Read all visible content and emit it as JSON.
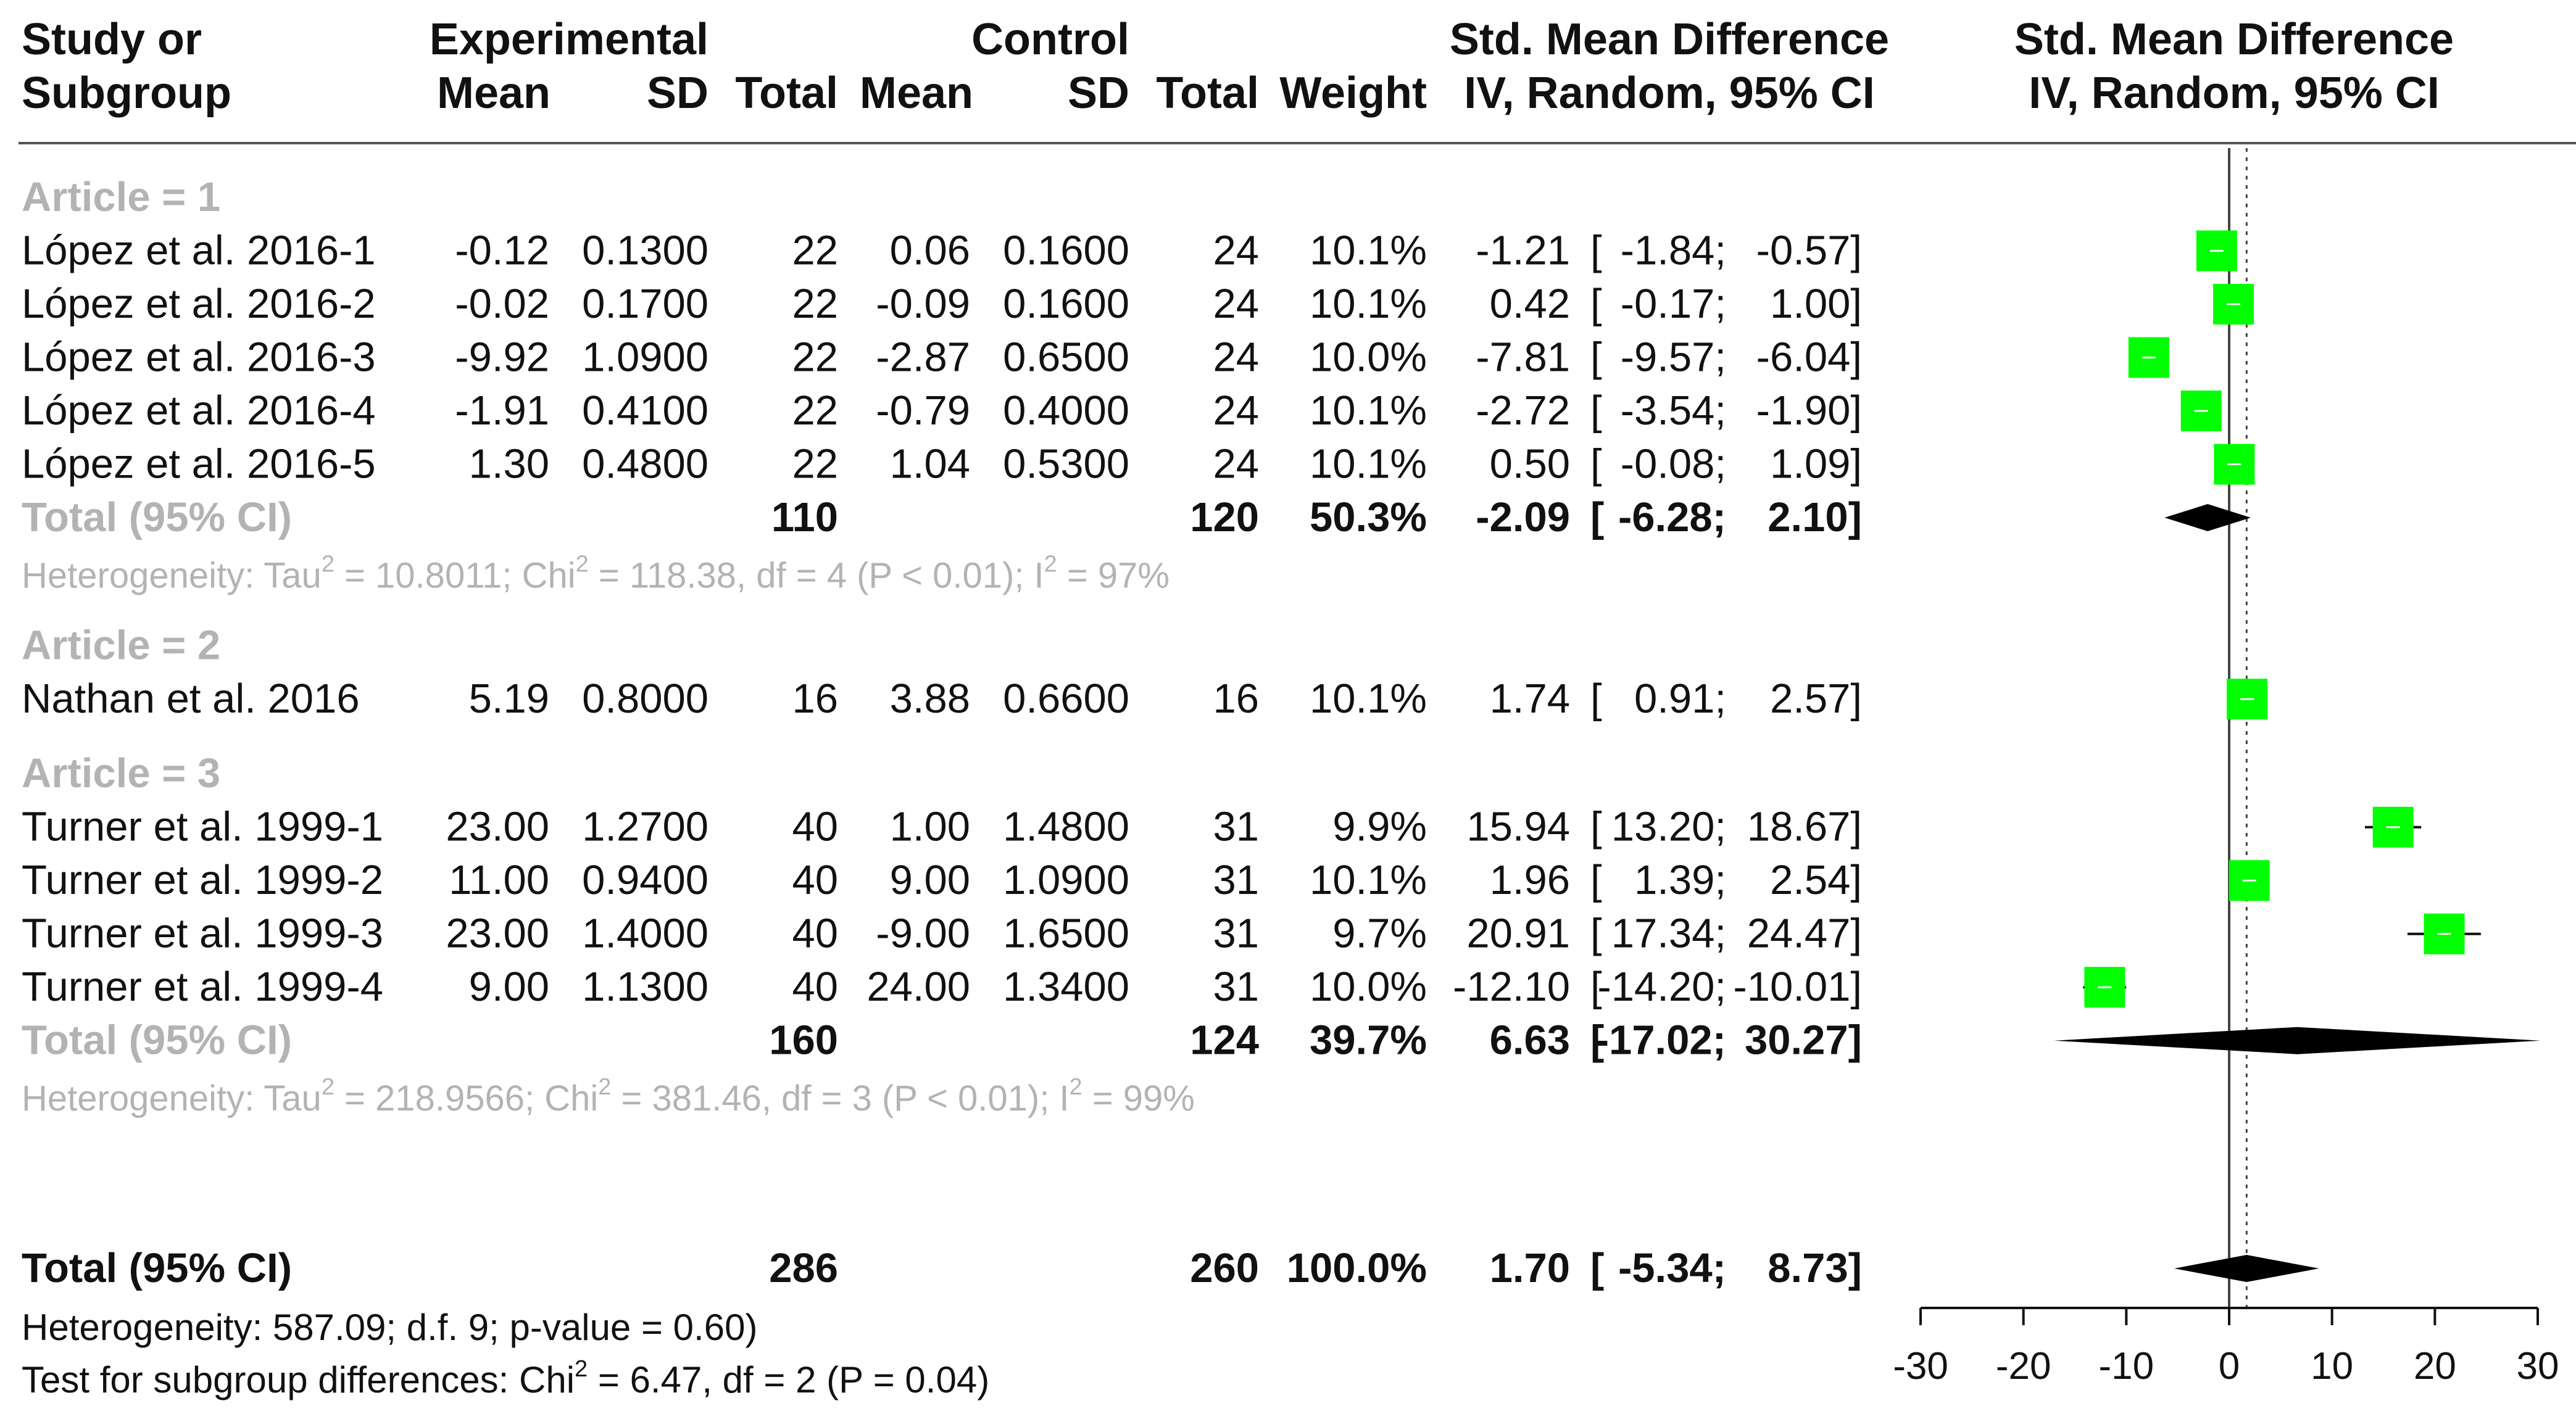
{
  "chart_data": {
    "type": "forest",
    "header": {
      "col_study_1": "Study or",
      "col_study_2": "Subgroup",
      "group_experimental": "Experimental",
      "group_control": "Control",
      "col_mean": "Mean",
      "col_sd": "SD",
      "col_total": "Total",
      "col_weight": "Weight",
      "col_smd_1": "Std. Mean Difference",
      "col_smd_2": "IV, Random, 95% CI",
      "plot_title_1": "Std. Mean Difference",
      "plot_title_2": "IV, Random, 95% CI"
    },
    "subgroups": [
      {
        "label": "Article = 1",
        "studies": [
          {
            "name": "López et al. 2016-1",
            "e_mean": "-0.12",
            "e_sd": "0.1300",
            "e_total": "22",
            "c_mean": "0.06",
            "c_sd": "0.1600",
            "c_total": "24",
            "weight": "10.1%",
            "smd": "-1.21",
            "lo": "-1.84",
            "hi": "-0.57",
            "est": -1.21,
            "ci": [
              -1.84,
              -0.57
            ]
          },
          {
            "name": "López et al. 2016-2",
            "e_mean": "-0.02",
            "e_sd": "0.1700",
            "e_total": "22",
            "c_mean": "-0.09",
            "c_sd": "0.1600",
            "c_total": "24",
            "weight": "10.1%",
            "smd": "0.42",
            "lo": "-0.17",
            "hi": "1.00",
            "est": 0.42,
            "ci": [
              -0.17,
              1.0
            ]
          },
          {
            "name": "López et al. 2016-3",
            "e_mean": "-9.92",
            "e_sd": "1.0900",
            "e_total": "22",
            "c_mean": "-2.87",
            "c_sd": "0.6500",
            "c_total": "24",
            "weight": "10.0%",
            "smd": "-7.81",
            "lo": "-9.57",
            "hi": "-6.04",
            "est": -7.81,
            "ci": [
              -9.57,
              -6.04
            ]
          },
          {
            "name": "López et al. 2016-4",
            "e_mean": "-1.91",
            "e_sd": "0.4100",
            "e_total": "22",
            "c_mean": "-0.79",
            "c_sd": "0.4000",
            "c_total": "24",
            "weight": "10.1%",
            "smd": "-2.72",
            "lo": "-3.54",
            "hi": "-1.90",
            "est": -2.72,
            "ci": [
              -3.54,
              -1.9
            ]
          },
          {
            "name": "López et al. 2016-5",
            "e_mean": "1.30",
            "e_sd": "0.4800",
            "e_total": "22",
            "c_mean": "1.04",
            "c_sd": "0.5300",
            "c_total": "24",
            "weight": "10.1%",
            "smd": "0.50",
            "lo": "-0.08",
            "hi": "1.09",
            "est": 0.5,
            "ci": [
              -0.08,
              1.09
            ]
          }
        ],
        "total": {
          "label": "Total (95% CI)",
          "e_total": "110",
          "c_total": "120",
          "weight": "50.3%",
          "smd": "-2.09",
          "lo": "-6.28",
          "hi": "2.10",
          "est": -2.09,
          "ci": [
            -6.28,
            2.1
          ]
        },
        "heterogeneity": {
          "prefix": "Heterogeneity: Tau",
          "sup1": "2",
          "mid": " = 10.8011; Chi",
          "sup2": "2",
          "mid2": " = 118.38, df = 4 (P < 0.01); I",
          "sup3": "2",
          "suffix": " = 97%"
        }
      },
      {
        "label": "Article = 2",
        "studies": [
          {
            "name": "Nathan et al. 2016",
            "e_mean": "5.19",
            "e_sd": "0.8000",
            "e_total": "16",
            "c_mean": "3.88",
            "c_sd": "0.6600",
            "c_total": "16",
            "weight": "10.1%",
            "smd": "1.74",
            "lo": "0.91",
            "hi": "2.57",
            "est": 1.74,
            "ci": [
              0.91,
              2.57
            ]
          }
        ]
      },
      {
        "label": "Article = 3",
        "studies": [
          {
            "name": "Turner et al. 1999-1",
            "e_mean": "23.00",
            "e_sd": "1.2700",
            "e_total": "40",
            "c_mean": "1.00",
            "c_sd": "1.4800",
            "c_total": "31",
            "weight": "9.9%",
            "smd": "15.94",
            "lo": "13.20",
            "hi": "18.67",
            "est": 15.94,
            "ci": [
              13.2,
              18.67
            ]
          },
          {
            "name": "Turner et al. 1999-2",
            "e_mean": "11.00",
            "e_sd": "0.9400",
            "e_total": "40",
            "c_mean": "9.00",
            "c_sd": "1.0900",
            "c_total": "31",
            "weight": "10.1%",
            "smd": "1.96",
            "lo": "1.39",
            "hi": "2.54",
            "est": 1.96,
            "ci": [
              1.39,
              2.54
            ]
          },
          {
            "name": "Turner et al. 1999-3",
            "e_mean": "23.00",
            "e_sd": "1.4000",
            "e_total": "40",
            "c_mean": "-9.00",
            "c_sd": "1.6500",
            "c_total": "31",
            "weight": "9.7%",
            "smd": "20.91",
            "lo": "17.34",
            "hi": "24.47",
            "est": 20.91,
            "ci": [
              17.34,
              24.47
            ]
          },
          {
            "name": "Turner et al. 1999-4",
            "e_mean": "9.00",
            "e_sd": "1.1300",
            "e_total": "40",
            "c_mean": "24.00",
            "c_sd": "1.3400",
            "c_total": "31",
            "weight": "10.0%",
            "smd": "-12.10",
            "lo": "-14.20",
            "hi": "-10.01",
            "est": -12.1,
            "ci": [
              -14.2,
              -10.01
            ]
          }
        ],
        "total": {
          "label": "Total (95% CI)",
          "e_total": "160",
          "c_total": "124",
          "weight": "39.7%",
          "smd": "6.63",
          "lo": "-17.02",
          "hi": "30.27",
          "est": 6.63,
          "ci": [
            -17.02,
            30.27
          ]
        },
        "heterogeneity": {
          "prefix": "Heterogeneity: Tau",
          "sup1": "2",
          "mid": " = 218.9566; Chi",
          "sup2": "2",
          "mid2": " = 381.46, df = 3 (P < 0.01); I",
          "sup3": "2",
          "suffix": " = 99%"
        }
      }
    ],
    "overall": {
      "label": "Total (95% CI)",
      "e_total": "286",
      "c_total": "260",
      "weight": "100.0%",
      "smd": "1.70",
      "lo": "-5.34",
      "hi": "8.73",
      "est": 1.7,
      "ci": [
        -5.34,
        8.73
      ]
    },
    "overall_heterogeneity": "Heterogeneity: 587.09; d.f. 9; p-value = 0.60)",
    "subgroup_test": {
      "prefix": "Test for subgroup differences: Chi",
      "sup": "2",
      "suffix": " = 6.47, df = 2 (P = 0.04)"
    },
    "x_axis": {
      "min": -30,
      "max": 30,
      "ticks": [
        "-30",
        "-20",
        "-10",
        "0",
        "10",
        "20",
        "30"
      ],
      "null_line": 0,
      "reference_line": 1.7
    },
    "colors": {
      "square": "#00ff00",
      "diamond": "#000000",
      "subgroup_label": "#b3b3b3",
      "text": "#111111"
    }
  }
}
